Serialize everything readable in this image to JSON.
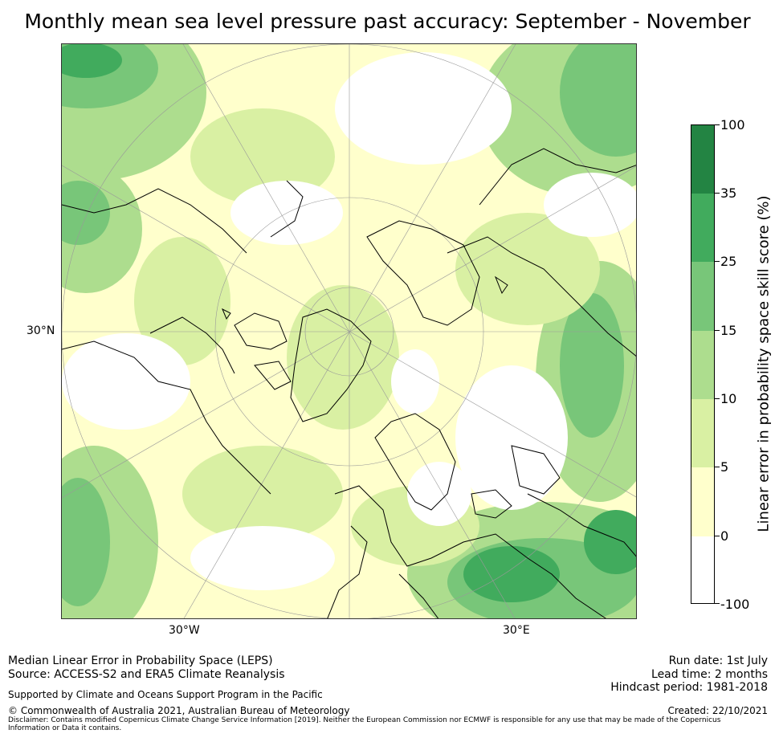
{
  "title": "Monthly mean sea level pressure past accuracy: September - November",
  "map": {
    "lat_label": "30°N",
    "lon_labels": [
      "30°W",
      "30°E"
    ],
    "colors": {
      "white": "#ffffff",
      "pale_yellow": "#ffffcc",
      "light_yellow_green": "#d9f0a3",
      "light_green": "#addd8e",
      "mid_green": "#78c679",
      "green": "#41ab5d",
      "dark_green": "#238443",
      "coast": "#000000",
      "grid": "#999999"
    }
  },
  "colorbar": {
    "title": "Linear error in probability space skill score (%)",
    "ticks": [
      "-100",
      "0",
      "5",
      "10",
      "15",
      "25",
      "35",
      "100"
    ],
    "colors": [
      "#ffffff",
      "#ffffcc",
      "#d9f0a3",
      "#addd8e",
      "#78c679",
      "#41ab5d",
      "#238443"
    ]
  },
  "footer": {
    "line1": "Median Linear Error in Probability Space (LEPS)",
    "line2": "Source: ACCESS-S2 and ERA5 Climate Reanalysis",
    "support": "Supported by Climate and Oceans Support Program in the Pacific",
    "copyright": "© Commonwealth of Australia 2021, Australian Bureau of Meteorology",
    "disclaimer": "Disclaimer: Contains modified Copernicus Climate Change Service Information [2019]. Neither the European Commission nor ECMWF is responsible for any use that may be made of the Copernicus Information or Data it contains.",
    "run_date": "Run date: 1st July",
    "lead_time": "Lead time: 2 months",
    "hindcast": "Hindcast period: 1981-2018",
    "created": "Created: 22/10/2021"
  }
}
